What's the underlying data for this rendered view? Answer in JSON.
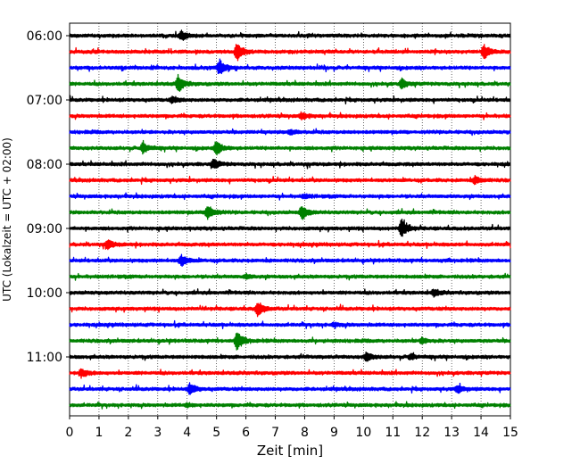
{
  "chart_data": {
    "type": "line",
    "title": "",
    "xlabel": "Zeit  [min]",
    "ylabel": "UTC (Lokalzeit = UTC + 02:00)",
    "xlim": [
      0,
      15
    ],
    "x_ticks": [
      "0",
      "1",
      "2",
      "3",
      "4",
      "5",
      "6",
      "7",
      "8",
      "9",
      "10",
      "11",
      "12",
      "13",
      "14",
      "15"
    ],
    "y_tick_labels": [
      "06:00",
      "07:00",
      "08:00",
      "09:00",
      "10:00",
      "11:00"
    ],
    "grid": "vertical dotted",
    "trace_interval_minutes": 15,
    "first_trace": "06:00",
    "trace_colors": [
      "#000000",
      "#ff0000",
      "#0000ff",
      "#008000"
    ],
    "traces": [
      {
        "start": "06:00",
        "events": [
          {
            "t": 3.8,
            "amp": 0.5
          }
        ]
      },
      {
        "start": "06:15",
        "events": [
          {
            "t": 5.7,
            "amp": 1.0
          },
          {
            "t": 14.1,
            "amp": 0.8
          }
        ]
      },
      {
        "start": "06:30",
        "events": [
          {
            "t": 5.1,
            "amp": 0.9
          }
        ]
      },
      {
        "start": "06:45",
        "events": [
          {
            "t": 3.7,
            "amp": 0.9
          },
          {
            "t": 11.3,
            "amp": 0.5
          }
        ]
      },
      {
        "start": "07:00",
        "events": [
          {
            "t": 3.5,
            "amp": 0.3
          }
        ]
      },
      {
        "start": "07:15",
        "events": [
          {
            "t": 7.9,
            "amp": 0.35
          }
        ]
      },
      {
        "start": "07:30",
        "events": [
          {
            "t": 7.5,
            "amp": 0.25
          }
        ]
      },
      {
        "start": "07:45",
        "events": [
          {
            "t": 2.5,
            "amp": 0.6
          },
          {
            "t": 5.0,
            "amp": 0.8
          }
        ]
      },
      {
        "start": "08:00",
        "events": [
          {
            "t": 4.9,
            "amp": 0.5
          }
        ]
      },
      {
        "start": "08:15",
        "events": [
          {
            "t": 13.8,
            "amp": 0.4
          }
        ]
      },
      {
        "start": "08:30",
        "events": [
          {
            "t": 8.0,
            "amp": 0.2
          }
        ]
      },
      {
        "start": "08:45",
        "events": [
          {
            "t": 4.7,
            "amp": 0.85
          },
          {
            "t": 7.9,
            "amp": 0.75
          }
        ]
      },
      {
        "start": "09:00",
        "events": [
          {
            "t": 11.3,
            "amp": 1.1
          }
        ]
      },
      {
        "start": "09:15",
        "events": [
          {
            "t": 1.3,
            "amp": 0.5
          }
        ]
      },
      {
        "start": "09:30",
        "events": [
          {
            "t": 3.8,
            "amp": 0.6
          }
        ]
      },
      {
        "start": "09:45",
        "events": [
          {
            "t": 6.0,
            "amp": 0.2
          }
        ]
      },
      {
        "start": "10:00",
        "events": [
          {
            "t": 12.4,
            "amp": 0.35
          }
        ]
      },
      {
        "start": "10:15",
        "events": [
          {
            "t": 6.4,
            "amp": 0.8
          }
        ]
      },
      {
        "start": "10:30",
        "events": [
          {
            "t": 9.0,
            "amp": 0.2
          }
        ]
      },
      {
        "start": "10:45",
        "events": [
          {
            "t": 5.7,
            "amp": 1.0
          },
          {
            "t": 12.0,
            "amp": 0.3
          }
        ]
      },
      {
        "start": "11:00",
        "events": [
          {
            "t": 10.1,
            "amp": 0.5
          },
          {
            "t": 11.6,
            "amp": 0.3
          }
        ]
      },
      {
        "start": "11:15",
        "events": [
          {
            "t": 0.4,
            "amp": 0.5
          }
        ]
      },
      {
        "start": "11:30",
        "events": [
          {
            "t": 4.1,
            "amp": 0.6
          },
          {
            "t": 13.2,
            "amp": 0.4
          }
        ]
      },
      {
        "start": "11:45",
        "events": [
          {
            "t": 4.0,
            "amp": 0.15
          }
        ]
      }
    ]
  }
}
